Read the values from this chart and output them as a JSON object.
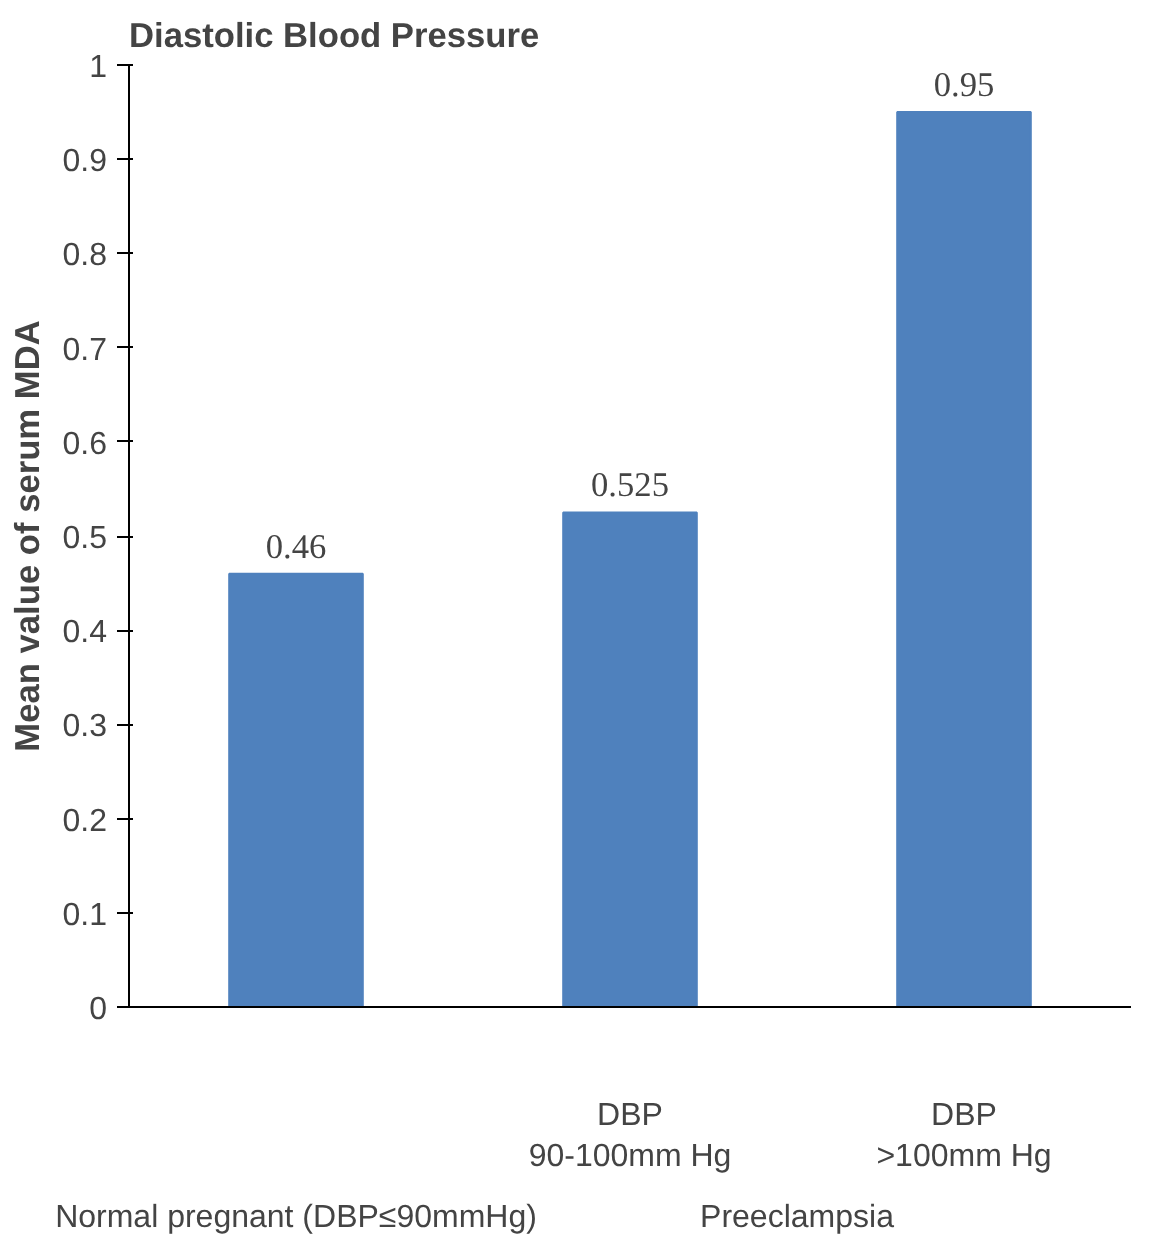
{
  "chart_data": {
    "type": "bar",
    "title": "Diastolic Blood Pressure",
    "ylabel": "Mean value of serum MDA",
    "categories": [
      null,
      "DBP 90-100mm Hg",
      "DBP >100mm Hg"
    ],
    "values": [
      0.46,
      0.525,
      0.95
    ],
    "color": "#4f81bd",
    "ylim": [
      0,
      1
    ],
    "yticks": [
      0,
      0.1,
      0.2,
      0.3,
      0.4,
      0.5,
      0.6,
      0.7,
      0.8,
      0.9,
      1
    ],
    "data_labels": true,
    "grid": false,
    "annotations": [
      "Normal pregnant (DBP≤90mmHg)",
      "Preeclampsia"
    ]
  }
}
